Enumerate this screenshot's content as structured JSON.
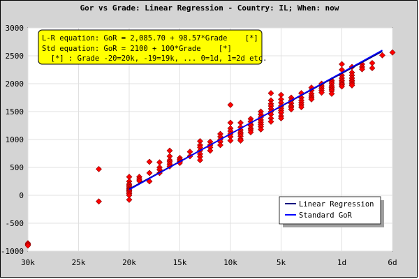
{
  "chart_data": {
    "type": "scatter",
    "title": "Gor vs Grade: Linear Regression - Country: IL; When: now",
    "xlabel": "",
    "ylabel": "",
    "x_direction": "grade from 30k (left) to 6d (right)",
    "xlim": [
      -30,
      6
    ],
    "ylim": [
      -1000,
      3000
    ],
    "x_ticks": [
      {
        "value": -30,
        "label": "30k"
      },
      {
        "value": -25,
        "label": "25k"
      },
      {
        "value": -20,
        "label": "20k"
      },
      {
        "value": -15,
        "label": "15k"
      },
      {
        "value": -10,
        "label": "10k"
      },
      {
        "value": -5,
        "label": "5k"
      },
      {
        "value": 1,
        "label": "1d"
      },
      {
        "value": 6,
        "label": "6d"
      }
    ],
    "y_ticks": [
      -1000,
      -500,
      0,
      500,
      1000,
      1500,
      2000,
      2500,
      3000
    ],
    "grid": true,
    "annotation": {
      "lines": [
        "L-R equation: GoR = 2,085.70 + 98.57*Grade    [*]",
        "Std equation: GoR = 2100 + 100*Grade    [*]",
        "  [*] : Grade -20=20k, -19=19k, ... 0=1d, 1=2d etc."
      ],
      "background": "#ffff00"
    },
    "legend": {
      "placement": "bottom-right",
      "entries": [
        {
          "label": "Linear Regression",
          "color": "#000080"
        },
        {
          "label": "Standard GoR",
          "color": "#0000ff"
        }
      ]
    },
    "lines": [
      {
        "name": "Linear Regression",
        "color": "#000080",
        "intercept": 2085.7,
        "slope": 98.57,
        "x_range": [
          -20,
          5
        ]
      },
      {
        "name": "Standard GoR",
        "color": "#0000ff",
        "intercept": 2100,
        "slope": 100,
        "x_range": [
          -20,
          5
        ]
      }
    ],
    "points": {
      "color": "#ff0000",
      "x": [
        -30,
        -30,
        -30,
        -23,
        -23,
        -20,
        -20,
        -20,
        -20,
        -20,
        -20,
        -20,
        -20,
        -20,
        -20,
        -20,
        -20,
        -19,
        -19,
        -19,
        -18,
        -18,
        -18,
        -17,
        -17,
        -17,
        -17,
        -16,
        -16,
        -16,
        -16,
        -16,
        -16,
        -15,
        -15,
        -15,
        -15,
        -14,
        -14,
        -13,
        -13,
        -13,
        -13,
        -13,
        -13,
        -13,
        -12,
        -12,
        -12,
        -12,
        -11,
        -11,
        -11,
        -11,
        -11,
        -10,
        -10,
        -10,
        -10,
        -10,
        -10,
        -10,
        -9,
        -9,
        -9,
        -9,
        -9,
        -9,
        -9,
        -9,
        -8,
        -8,
        -8,
        -8,
        -8,
        -8,
        -8,
        -7,
        -7,
        -7,
        -7,
        -7,
        -7,
        -7,
        -7,
        -6,
        -6,
        -6,
        -6,
        -6,
        -6,
        -6,
        -6,
        -6,
        -5,
        -5,
        -5,
        -5,
        -5,
        -5,
        -5,
        -5,
        -5,
        -4,
        -4,
        -4,
        -4,
        -4,
        -4,
        -3,
        -3,
        -3,
        -3,
        -3,
        -3,
        -2,
        -2,
        -2,
        -2,
        -2,
        -2,
        -1,
        -1,
        -1,
        -1,
        -1,
        0,
        0,
        0,
        0,
        0,
        0,
        0,
        0,
        1,
        1,
        1,
        1,
        1,
        1,
        1,
        1,
        1,
        2,
        2,
        2,
        2,
        2,
        2,
        2,
        2,
        3,
        3,
        3,
        4,
        4,
        5,
        6
      ],
      "y": [
        -860,
        -880,
        -900,
        470,
        -110,
        330,
        250,
        200,
        180,
        150,
        120,
        100,
        80,
        60,
        30,
        0,
        -80,
        330,
        290,
        260,
        600,
        400,
        250,
        590,
        500,
        460,
        400,
        800,
        700,
        630,
        600,
        560,
        520,
        670,
        640,
        610,
        580,
        780,
        700,
        970,
        900,
        860,
        800,
        740,
        690,
        630,
        960,
        900,
        860,
        800,
        1100,
        1050,
        1000,
        960,
        900,
        1620,
        1300,
        1200,
        1150,
        1100,
        1050,
        980,
        1300,
        1220,
        1170,
        1130,
        1100,
        1060,
        1010,
        980,
        1370,
        1320,
        1270,
        1250,
        1200,
        1170,
        1130,
        1500,
        1450,
        1400,
        1350,
        1310,
        1270,
        1230,
        1180,
        1830,
        1700,
        1640,
        1600,
        1550,
        1500,
        1450,
        1380,
        1320,
        1800,
        1720,
        1660,
        1600,
        1560,
        1520,
        1480,
        1420,
        1380,
        1750,
        1700,
        1650,
        1600,
        1580,
        1540,
        1830,
        1750,
        1700,
        1660,
        1620,
        1580,
        1930,
        1880,
        1820,
        1780,
        1750,
        1720,
        2000,
        1960,
        1920,
        1880,
        1840,
        2060,
        2030,
        2000,
        1960,
        1930,
        1900,
        1870,
        1820,
        2350,
        2250,
        2150,
        2100,
        2060,
        2030,
        2000,
        1980,
        1950,
        2300,
        2200,
        2150,
        2100,
        2060,
        2030,
        2000,
        1970,
        2350,
        2300,
        2260,
        2370,
        2280,
        2510,
        2560
      ]
    }
  }
}
